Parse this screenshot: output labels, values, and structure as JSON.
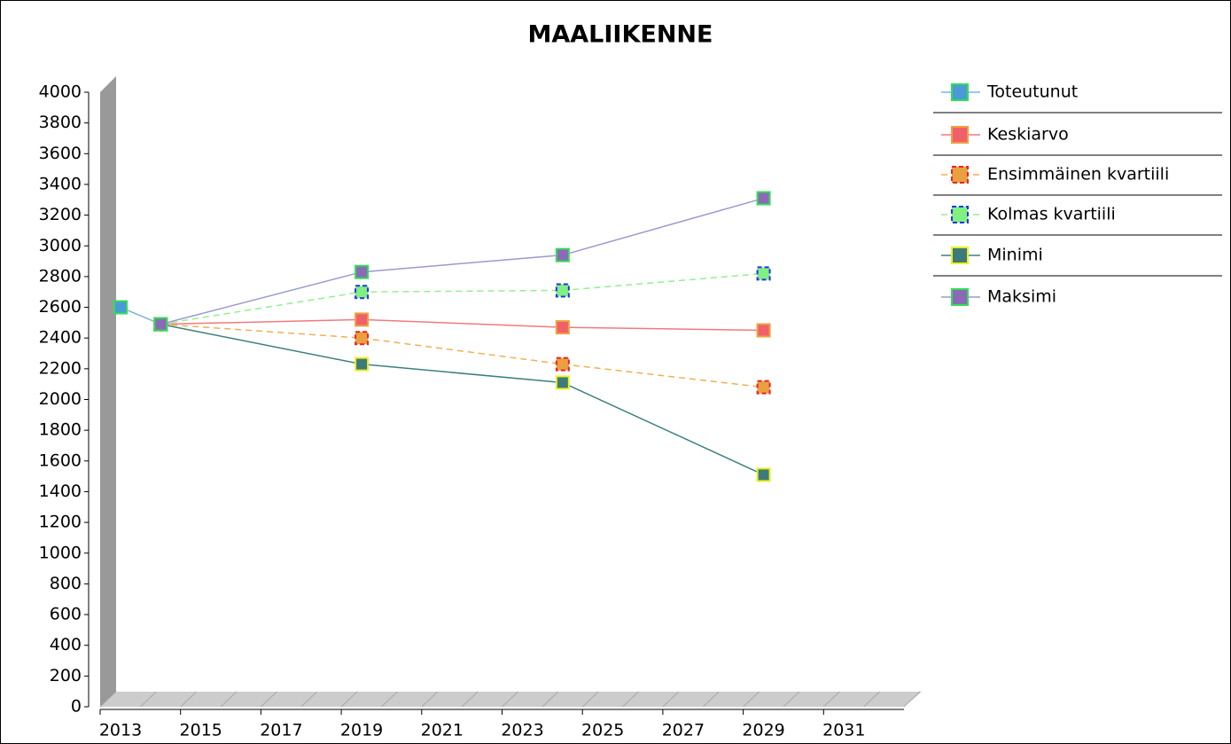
{
  "chart_data": {
    "type": "line",
    "title": "MAALIIKENNE",
    "x": [
      2013,
      2014,
      2019,
      2024,
      2029
    ],
    "xlim": [
      2013,
      2033
    ],
    "xticks": [
      2013,
      2015,
      2017,
      2019,
      2021,
      2023,
      2025,
      2027,
      2029,
      2031
    ],
    "ylim": [
      0,
      4000
    ],
    "yticks": [
      0,
      200,
      400,
      600,
      800,
      1000,
      1200,
      1400,
      1600,
      1800,
      2000,
      2200,
      2400,
      2600,
      2800,
      3000,
      3200,
      3400,
      3600,
      3800,
      4000
    ],
    "legend": "right",
    "series": [
      {
        "name": "Toteutunut",
        "color": "#7ab4e0",
        "marker_color": "#4a9ad8",
        "marker_edge": "#33dd55",
        "dashed": false,
        "values": [
          2600,
          2490,
          null,
          null,
          null
        ]
      },
      {
        "name": "Keskiarvo",
        "color": "#f07a80",
        "marker_color": "#f0606a",
        "marker_edge": "#f0a040",
        "dashed": false,
        "values": [
          null,
          2490,
          2520,
          2470,
          2450
        ]
      },
      {
        "name": "Ensimmäinen kvartiili",
        "color": "#f0b050",
        "marker_color": "#e8a040",
        "marker_edge": "#ee2222",
        "dashed": true,
        "values": [
          null,
          2490,
          2400,
          2230,
          2080
        ]
      },
      {
        "name": "Kolmas kvartiili",
        "color": "#90f090",
        "marker_color": "#80f080",
        "marker_edge": "#2233ee",
        "dashed": true,
        "values": [
          null,
          2490,
          2700,
          2710,
          2820
        ]
      },
      {
        "name": "Minimi",
        "color": "#3d8080",
        "marker_color": "#3d7a7a",
        "marker_edge": "#eeee22",
        "dashed": false,
        "values": [
          null,
          2490,
          2230,
          2110,
          1510
        ]
      },
      {
        "name": "Maksimi",
        "color": "#9a9ad0",
        "marker_color": "#8a6ab8",
        "marker_edge": "#33dd55",
        "dashed": false,
        "values": [
          null,
          2490,
          2830,
          2940,
          3310
        ]
      }
    ]
  }
}
